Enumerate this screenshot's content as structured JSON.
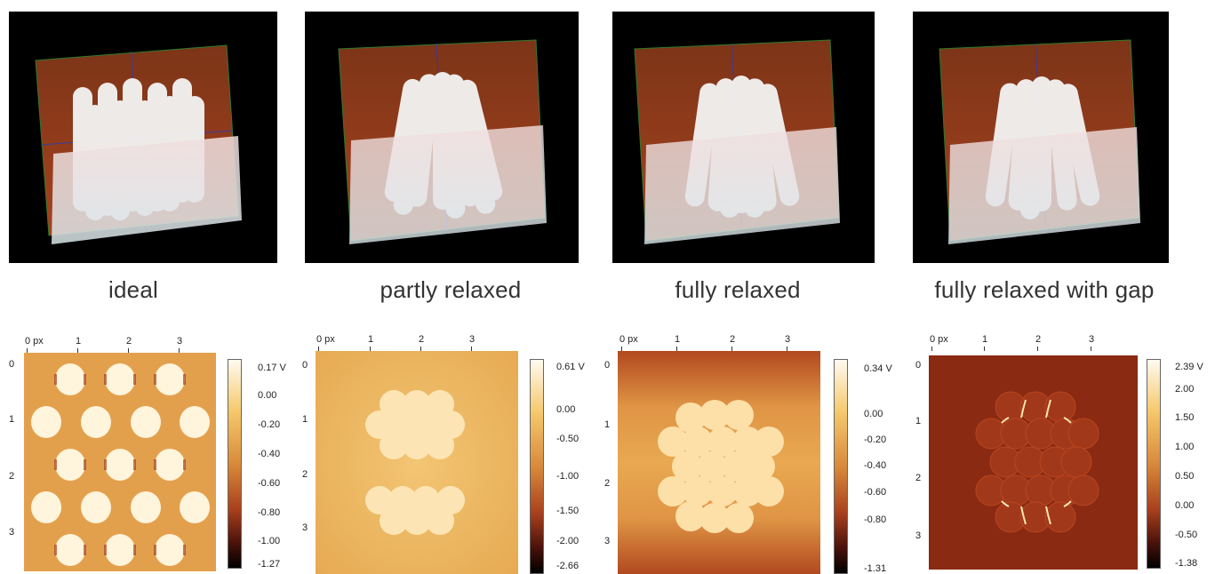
{
  "panels": [
    {
      "caption": "ideal",
      "colorbar": [
        "0.17 V",
        "0.00",
        "-0.20",
        "-0.40",
        "-0.60",
        "-0.80",
        "-1.00",
        "-1.27"
      ],
      "xticks": [
        "0 px",
        "1",
        "2",
        "3"
      ],
      "yticks": [
        "0",
        "1",
        "2",
        "3"
      ]
    },
    {
      "caption": "partly relaxed",
      "colorbar": [
        "0.61 V",
        "0.00",
        "-0.50",
        "-1.00",
        "-1.50",
        "-2.00",
        "-2.66"
      ],
      "xticks": [
        "0 px",
        "1",
        "2",
        "3"
      ],
      "yticks": [
        "0",
        "1",
        "2",
        "3"
      ]
    },
    {
      "caption": "fully relaxed",
      "colorbar": [
        "0.34 V",
        "0.00",
        "-0.20",
        "-0.40",
        "-0.60",
        "-0.80",
        "-1.31"
      ],
      "xticks": [
        "0 px",
        "1",
        "2",
        "3"
      ],
      "yticks": [
        "0",
        "1",
        "2",
        "3"
      ]
    },
    {
      "caption": "fully relaxed with gap",
      "colorbar": [
        "2.39 V",
        "2.00",
        "1.50",
        "1.00",
        "0.50",
        "0.00",
        "-0.50",
        "-1.38"
      ],
      "xticks": [
        "0 px",
        "1",
        "2",
        "3"
      ],
      "yticks": [
        "0",
        "1",
        "2",
        "3"
      ]
    }
  ]
}
